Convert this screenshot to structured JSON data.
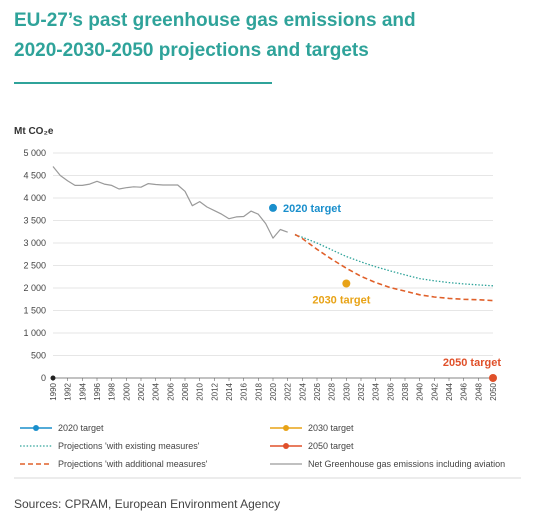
{
  "header": {
    "title_line1": "EU-27’s past greenhouse gas emissions and",
    "title_line2": "2020-2030-2050 projections and targets"
  },
  "source": "Sources: CPRAM, European Environment Agency",
  "colors": {
    "title": "#2fa39a",
    "history": "#9a9a9a",
    "existing": "#2fa39a",
    "additional": "#e0602a",
    "target2020": "#1a8fcc",
    "target2030": "#e8a317",
    "target2050": "#e0502a"
  },
  "chart_data": {
    "type": "line",
    "ylabel": "Mt CO₂e",
    "ylim": [
      0,
      5000
    ],
    "xlim": [
      1990,
      2050
    ],
    "y_ticks": [
      "0",
      "500",
      "1 000",
      "1 500",
      "2 000",
      "2 500",
      "3 000",
      "3 500",
      "4 000",
      "4 500",
      "5 000"
    ],
    "y_tick_values": [
      0,
      500,
      1000,
      1500,
      2000,
      2500,
      3000,
      3500,
      4000,
      4500,
      5000
    ],
    "x_ticks": [
      "1990",
      "1992",
      "1994",
      "1996",
      "1998",
      "2000",
      "2002",
      "2004",
      "2006",
      "2008",
      "2010",
      "2012",
      "2014",
      "2016",
      "2018",
      "2020",
      "2022",
      "2024",
      "2026",
      "2028",
      "2030",
      "2032",
      "2034",
      "2036",
      "2038",
      "2040",
      "2042",
      "2044",
      "2046",
      "2048",
      "2050"
    ],
    "grid": "horizontal",
    "series": [
      {
        "name": "Net Greenhouse gas emissions including aviation",
        "style": "solid",
        "x": [
          1990,
          1991,
          1992,
          1993,
          1994,
          1995,
          1996,
          1997,
          1998,
          1999,
          2000,
          2001,
          2002,
          2003,
          2004,
          2005,
          2006,
          2007,
          2008,
          2009,
          2010,
          2011,
          2012,
          2013,
          2014,
          2015,
          2016,
          2017,
          2018,
          2019,
          2020,
          2021,
          2022
        ],
        "y": [
          4700,
          4500,
          4380,
          4280,
          4280,
          4310,
          4370,
          4310,
          4280,
          4200,
          4230,
          4250,
          4240,
          4320,
          4300,
          4290,
          4290,
          4290,
          4150,
          3830,
          3920,
          3800,
          3720,
          3640,
          3540,
          3580,
          3590,
          3710,
          3640,
          3430,
          3110,
          3300,
          3240
        ]
      },
      {
        "name": "Projections 'with existing measures'",
        "style": "dotted",
        "x": [
          2023,
          2024,
          2026,
          2028,
          2030,
          2032,
          2034,
          2036,
          2038,
          2040,
          2042,
          2044,
          2046,
          2048,
          2050
        ],
        "y": [
          3180,
          3130,
          3000,
          2850,
          2700,
          2580,
          2470,
          2380,
          2290,
          2210,
          2160,
          2120,
          2090,
          2070,
          2050
        ]
      },
      {
        "name": "Projections 'with additional measures'",
        "style": "dashed",
        "x": [
          2023,
          2024,
          2026,
          2028,
          2030,
          2032,
          2034,
          2036,
          2038,
          2040,
          2042,
          2044,
          2046,
          2048,
          2050
        ],
        "y": [
          3190,
          3100,
          2860,
          2640,
          2440,
          2260,
          2120,
          2010,
          1930,
          1850,
          1800,
          1770,
          1750,
          1740,
          1720
        ]
      }
    ],
    "targets": [
      {
        "name": "2020 target",
        "label": "2020 target",
        "x": 2020,
        "y": 3780,
        "color": "#1a8fcc"
      },
      {
        "name": "2030 target",
        "label": "2030 target",
        "x": 2030,
        "y": 2100,
        "color": "#e8a317"
      },
      {
        "name": "2050 target",
        "label": "2050 target",
        "x": 2050,
        "y": 0,
        "color": "#e0502a"
      }
    ],
    "baseline_marker": {
      "x": 1990,
      "y": 0
    },
    "legend": [
      {
        "label": "2020 target",
        "kind": "dot-line",
        "color": "#1a8fcc"
      },
      {
        "label": "2030 target",
        "kind": "dot-line",
        "color": "#e8a317"
      },
      {
        "label": "Projections 'with existing measures'",
        "kind": "dotted",
        "color": "#2fa39a"
      },
      {
        "label": "2050 target",
        "kind": "dot-line",
        "color": "#e0502a"
      },
      {
        "label": "Projections 'with additional measures'",
        "kind": "dashed",
        "color": "#e0602a"
      },
      {
        "label": "Net Greenhouse gas emissions including aviation",
        "kind": "solid",
        "color": "#9a9a9a"
      }
    ],
    "legend_position": "bottom"
  }
}
